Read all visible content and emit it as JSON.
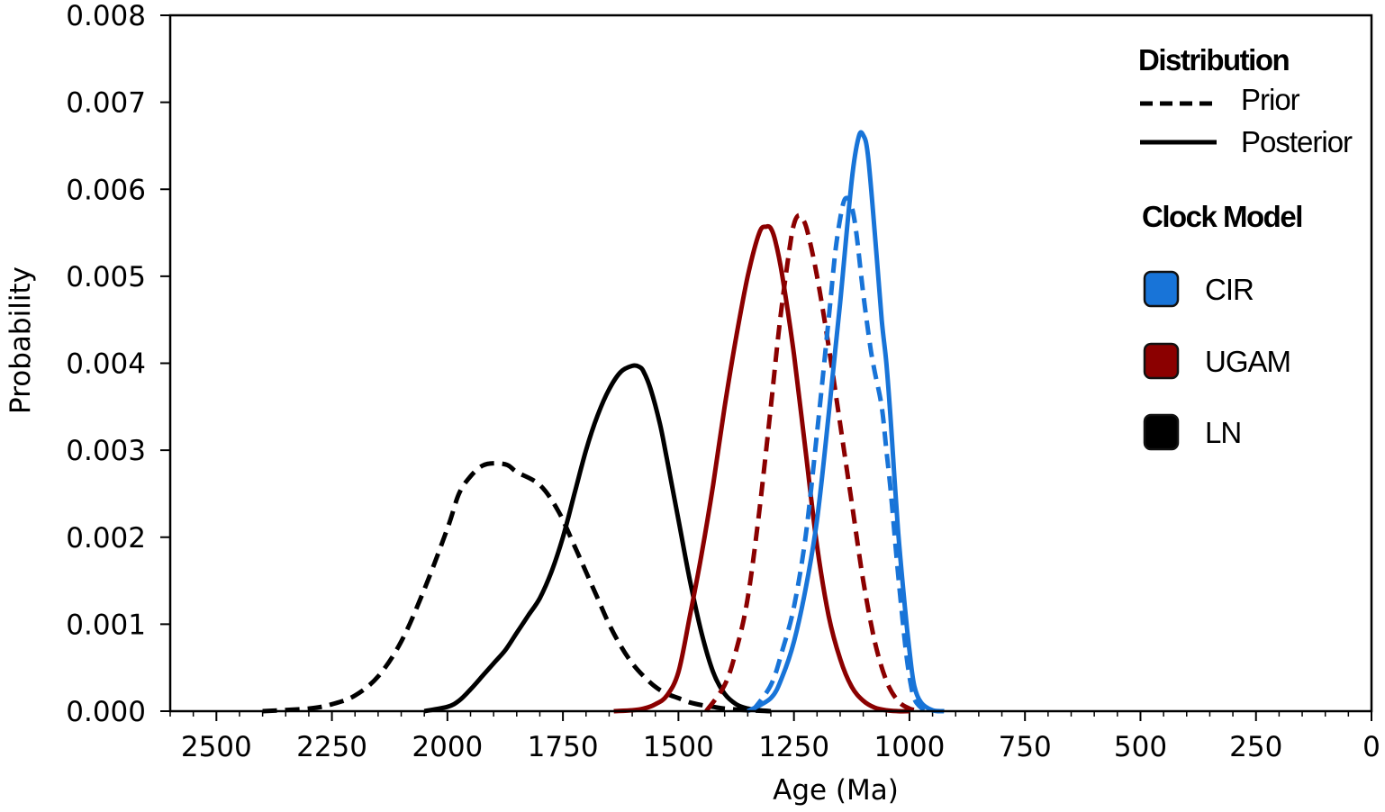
{
  "chart_data": {
    "type": "line",
    "title": "",
    "xlabel": "Age (Ma)",
    "ylabel": "Probability",
    "xlim": [
      2600,
      0
    ],
    "ylim": [
      0,
      0.008
    ],
    "x_reversed": true,
    "grid": false,
    "legend_placement": "top-right",
    "x_ticks": [
      2500,
      2250,
      2000,
      1750,
      1500,
      1250,
      1000,
      750,
      500,
      250,
      0
    ],
    "x_tick_labels": [
      "2500",
      "2250",
      "2000",
      "1750",
      "1500",
      "1250",
      "1000",
      "750",
      "500",
      "250",
      "0"
    ],
    "y_ticks": [
      0,
      0.001,
      0.002,
      0.003,
      0.004,
      0.005,
      0.006,
      0.007,
      0.008
    ],
    "y_tick_labels": [
      "0.000",
      "0.001",
      "0.002",
      "0.003",
      "0.004",
      "0.005",
      "0.006",
      "0.007",
      "0.008"
    ],
    "legend": {
      "distribution_title": "Distribution",
      "distribution_items": [
        {
          "label": "Prior",
          "style": "dashed"
        },
        {
          "label": "Posterior",
          "style": "solid"
        }
      ],
      "model_title": "Clock Model",
      "model_items": [
        {
          "label": "CIR",
          "color": "#1874d8"
        },
        {
          "label": "UGAM",
          "color": "#8b0000"
        },
        {
          "label": "LN",
          "color": "#000000"
        }
      ]
    },
    "series": [
      {
        "model": "LN",
        "distribution": "Prior",
        "color": "#000000",
        "dashed": true,
        "x": [
          2400,
          2300,
          2250,
          2200,
          2150,
          2100,
          2050,
          2000,
          1975,
          1950,
          1925,
          1900,
          1870,
          1850,
          1800,
          1760,
          1725,
          1700,
          1675,
          1650,
          1625,
          1600,
          1575,
          1550,
          1525,
          1500,
          1475,
          1450,
          1425,
          1400,
          1350,
          1300
        ],
        "y": [
          0,
          3e-05,
          8e-05,
          0.00018,
          0.0004,
          0.0008,
          0.0014,
          0.0021,
          0.0025,
          0.0027,
          0.00282,
          0.00285,
          0.00283,
          0.00275,
          0.0026,
          0.0023,
          0.0019,
          0.0016,
          0.0013,
          0.001,
          0.00075,
          0.00055,
          0.0004,
          0.00028,
          0.0002,
          0.00015,
          0.0001,
          7e-05,
          5e-05,
          3e-05,
          1e-05,
          0
        ]
      },
      {
        "model": "LN",
        "distribution": "Posterior",
        "color": "#000000",
        "dashed": false,
        "x": [
          2050,
          2000,
          1975,
          1950,
          1925,
          1900,
          1875,
          1850,
          1825,
          1800,
          1775,
          1750,
          1725,
          1700,
          1675,
          1650,
          1625,
          1600,
          1585,
          1575,
          1560,
          1540,
          1525,
          1500,
          1475,
          1450,
          1425,
          1400,
          1375,
          1350,
          1325,
          1300
        ],
        "y": [
          0,
          5e-05,
          0.00012,
          0.00025,
          0.0004,
          0.00055,
          0.0007,
          0.0009,
          0.0011,
          0.0013,
          0.0016,
          0.002,
          0.0025,
          0.003,
          0.0034,
          0.0037,
          0.0039,
          0.00397,
          0.00396,
          0.0039,
          0.0037,
          0.0033,
          0.0029,
          0.0022,
          0.0015,
          0.0009,
          0.00045,
          0.0002,
          8e-05,
          3e-05,
          1e-05,
          0
        ]
      },
      {
        "model": "UGAM",
        "distribution": "Prior",
        "color": "#8b0000",
        "dashed": true,
        "x": [
          1440,
          1400,
          1375,
          1350,
          1325,
          1300,
          1280,
          1260,
          1250,
          1240,
          1230,
          1220,
          1200,
          1175,
          1150,
          1125,
          1100,
          1075,
          1050,
          1025,
          1000,
          975
        ],
        "y": [
          0,
          0.0003,
          0.0007,
          0.0013,
          0.0023,
          0.0035,
          0.0045,
          0.0053,
          0.0056,
          0.0057,
          0.00565,
          0.0055,
          0.005,
          0.0042,
          0.0033,
          0.0024,
          0.0015,
          0.0008,
          0.00035,
          0.00012,
          3e-05,
          0
        ]
      },
      {
        "model": "UGAM",
        "distribution": "Posterior",
        "color": "#8b0000",
        "dashed": false,
        "x": [
          1640,
          1600,
          1575,
          1550,
          1525,
          1500,
          1475,
          1450,
          1425,
          1400,
          1375,
          1350,
          1325,
          1310,
          1300,
          1290,
          1275,
          1250,
          1225,
          1200,
          1175,
          1150,
          1125,
          1100,
          1075,
          1050,
          1025,
          1000
        ],
        "y": [
          0,
          1e-05,
          3e-05,
          8e-05,
          0.00018,
          0.00045,
          0.0011,
          0.0018,
          0.0026,
          0.0035,
          0.0043,
          0.005,
          0.0055,
          0.00557,
          0.00555,
          0.0054,
          0.005,
          0.0041,
          0.003,
          0.0019,
          0.0011,
          0.0006,
          0.00028,
          0.00012,
          4e-05,
          1e-05,
          0,
          0
        ]
      },
      {
        "model": "CIR",
        "distribution": "Prior",
        "color": "#1874d8",
        "dashed": true,
        "x": [
          1340,
          1300,
          1275,
          1250,
          1225,
          1200,
          1175,
          1160,
          1145,
          1135,
          1125,
          1115,
          1100,
          1085,
          1075,
          1060,
          1050,
          1040,
          1025,
          1010,
          1000,
          990,
          975,
          960,
          950
        ],
        "y": [
          0,
          0.0003,
          0.0007,
          0.0012,
          0.002,
          0.0032,
          0.0045,
          0.0053,
          0.0058,
          0.0059,
          0.0058,
          0.0055,
          0.0048,
          0.0042,
          0.0039,
          0.0035,
          0.003,
          0.0025,
          0.0016,
          0.0008,
          0.0004,
          0.00015,
          4e-05,
          1e-05,
          0
        ]
      },
      {
        "model": "CIR",
        "distribution": "Posterior",
        "color": "#1874d8",
        "dashed": false,
        "x": [
          1350,
          1300,
          1275,
          1250,
          1225,
          1200,
          1175,
          1150,
          1125,
          1110,
          1100,
          1090,
          1075,
          1060,
          1050,
          1040,
          1025,
          1010,
          1000,
          990,
          975,
          950,
          925
        ],
        "y": [
          0,
          0.00015,
          0.0004,
          0.0008,
          0.0014,
          0.0022,
          0.0034,
          0.0047,
          0.0061,
          0.0066,
          0.00662,
          0.0064,
          0.0055,
          0.0045,
          0.004,
          0.0033,
          0.0021,
          0.0012,
          0.0007,
          0.0003,
          0.0001,
          1e-05,
          0
        ]
      }
    ]
  }
}
